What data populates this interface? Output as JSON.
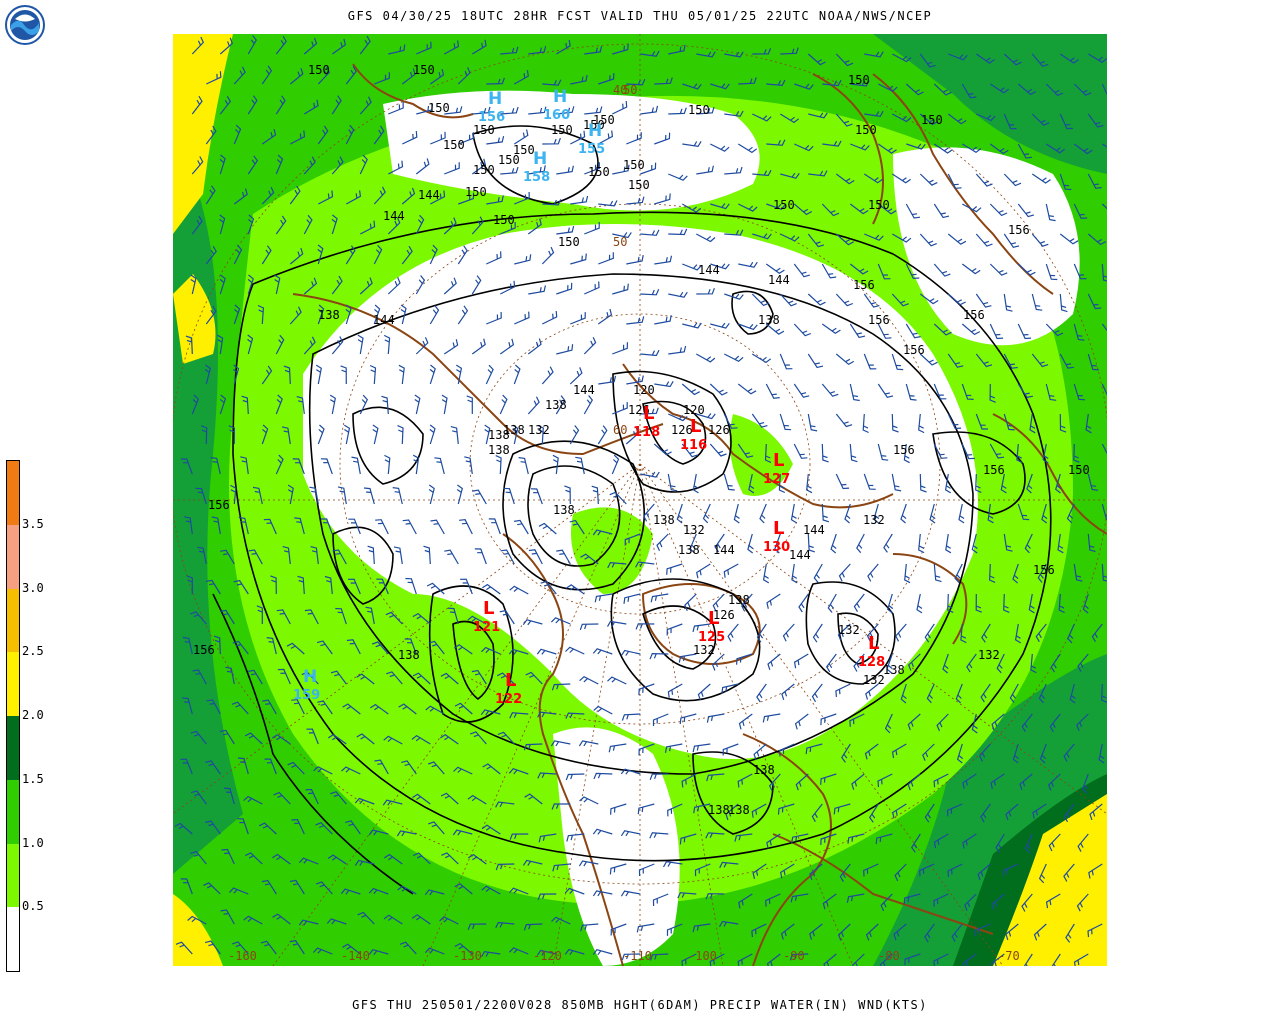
{
  "header": {
    "title": "GFS 04/30/25 18UTC 28HR FCST VALID THU 05/01/25 22UTC NOAA/NWS/NCEP",
    "logo_text": "NOAA"
  },
  "footer": {
    "title": "GFS THU 250501/2200V028 850MB HGHT(6DAM) PRECIP WATER(IN) WND(KTS)"
  },
  "colorbar": {
    "labels": [
      "0.5",
      "1.0",
      "1.5",
      "2.0",
      "2.5",
      "3.0",
      "3.5"
    ],
    "colors": [
      "#ffffff",
      "#7cf800",
      "#30cd00",
      "#006e1c",
      "#fff000",
      "#f5be00",
      "#f5a080",
      "#f07b14"
    ]
  },
  "map": {
    "colors": {
      "dry": "#ffffff",
      "light_green": "#7cf800",
      "green": "#30cd00",
      "dark_green": "#14a037",
      "darkest_green": "#006e1c",
      "yellow": "#fff000",
      "contour": "#000000",
      "coast": "#8b4513",
      "barb": "#1e4ba0",
      "low": "#ff0000",
      "high": "#3cb4f0"
    },
    "longitude_labels": [
      "-160",
      "-140",
      "-130",
      "-120",
      "-110",
      "-100",
      "-90",
      "-80",
      "-70"
    ],
    "latitude_labels": [
      "40",
      "50",
      "50",
      "60"
    ],
    "contour_labels": [
      "150",
      "150",
      "150",
      "150",
      "150",
      "150",
      "150",
      "150",
      "150",
      "150",
      "150",
      "150",
      "150",
      "150",
      "150",
      "150",
      "150",
      "150",
      "150",
      "150",
      "150",
      "150",
      "150",
      "144",
      "144",
      "144",
      "144",
      "144",
      "144",
      "144",
      "144",
      "144",
      "138",
      "138",
      "138",
      "138",
      "138",
      "138",
      "138",
      "138",
      "138",
      "138",
      "138",
      "138",
      "138",
      "138",
      "138",
      "132",
      "132",
      "132",
      "132",
      "132",
      "132",
      "132",
      "126",
      "126",
      "126",
      "126",
      "120",
      "120",
      "156",
      "156",
      "156",
      "156",
      "156",
      "156",
      "156",
      "156",
      "156",
      "156",
      "150"
    ],
    "lows": [
      {
        "letter": "L",
        "value": "118"
      },
      {
        "letter": "L",
        "value": "116"
      },
      {
        "letter": "L",
        "value": "127"
      },
      {
        "letter": "L",
        "value": "130"
      },
      {
        "letter": "L",
        "value": "125"
      },
      {
        "letter": "L",
        "value": "121"
      },
      {
        "letter": "L",
        "value": "122"
      },
      {
        "letter": "L",
        "value": "128"
      }
    ],
    "highs": [
      {
        "letter": "H",
        "value": "156"
      },
      {
        "letter": "H",
        "value": "160"
      },
      {
        "letter": "H",
        "value": "155"
      },
      {
        "letter": "H",
        "value": "158"
      },
      {
        "letter": "H",
        "value": "159"
      }
    ]
  }
}
